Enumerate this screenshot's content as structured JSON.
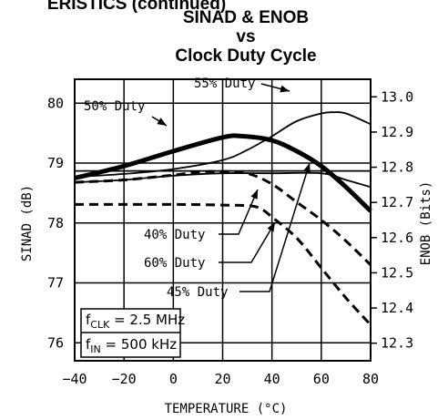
{
  "header_fragment": "ERISTICS (continued)",
  "chart_data": {
    "type": "line",
    "title": "SINAD & ENOB",
    "title_vs": "vs",
    "subtitle": "Clock Duty Cycle",
    "xlabel": "TEMPERATURE (°C)",
    "ylabel": "SINAD (dB)",
    "y2label": "ENOB (Bits)",
    "xlim": [
      -40,
      80
    ],
    "ylim": [
      75.7,
      80.4
    ],
    "y2lim": [
      12.25,
      13.05
    ],
    "x_ticks": [
      -40,
      -20,
      0,
      20,
      40,
      60,
      80
    ],
    "x_tick_labels": [
      "−40",
      "−20",
      "0",
      "20",
      "40",
      "60",
      "80"
    ],
    "y_ticks": [
      76,
      77,
      78,
      79,
      80
    ],
    "y_tick_labels": [
      "76",
      "77",
      "78",
      "79",
      "80"
    ],
    "y2_ticks": [
      12.3,
      12.4,
      12.5,
      12.6,
      12.7,
      12.8,
      12.9,
      13.0
    ],
    "y2_tick_labels": [
      "12.3",
      "12.4",
      "12.5",
      "12.6",
      "12.7",
      "12.8",
      "12.9",
      "13.0"
    ],
    "grid": true,
    "series": [
      {
        "name": "55% Duty",
        "style": "thin",
        "x": [
          -40,
          -20,
          0,
          20,
          30,
          40,
          50,
          60,
          65,
          70,
          80
        ],
        "y": [
          78.77,
          78.82,
          78.9,
          79.05,
          79.22,
          79.45,
          79.7,
          79.83,
          79.85,
          79.83,
          79.65
        ]
      },
      {
        "name": "50% Duty",
        "style": "thick",
        "x": [
          -40,
          -20,
          0,
          20,
          28,
          40,
          50,
          60,
          70,
          80
        ],
        "y": [
          78.75,
          78.95,
          79.2,
          79.43,
          79.45,
          79.38,
          79.2,
          78.95,
          78.6,
          78.2
        ]
      },
      {
        "name": "45% Duty",
        "style": "thin",
        "x": [
          -40,
          0,
          20,
          40,
          60,
          70,
          80
        ],
        "y": [
          78.87,
          78.87,
          78.87,
          78.87,
          78.87,
          78.87,
          78.87
        ]
      },
      {
        "name": "40% Duty",
        "style": "thin",
        "x": [
          -40,
          -20,
          0,
          20,
          40,
          60,
          70,
          80
        ],
        "y": [
          78.68,
          78.72,
          78.79,
          78.83,
          78.83,
          78.83,
          78.72,
          78.6
        ]
      },
      {
        "name": "60% Duty",
        "style": "dashed",
        "x": [
          -40,
          -20,
          0,
          10,
          20,
          30,
          40,
          50,
          60,
          70,
          80
        ],
        "y": [
          78.68,
          78.72,
          78.8,
          78.85,
          78.86,
          78.83,
          78.65,
          78.35,
          78.05,
          77.7,
          77.3
        ]
      },
      {
        "name": "",
        "style": "dashed",
        "x": [
          -40,
          0,
          20,
          30,
          35,
          40,
          50,
          60,
          70,
          80
        ],
        "y": [
          78.31,
          78.31,
          78.3,
          78.29,
          78.25,
          78.1,
          77.75,
          77.25,
          76.75,
          76.3
        ]
      }
    ],
    "annotations": {
      "conditions": {
        "clk_label": "f",
        "clk_sub": "CLK",
        "clk_value": " = 2.5 MHz",
        "in_label": "f",
        "in_sub": "IN",
        "in_value": " = 500 kHz"
      }
    }
  }
}
